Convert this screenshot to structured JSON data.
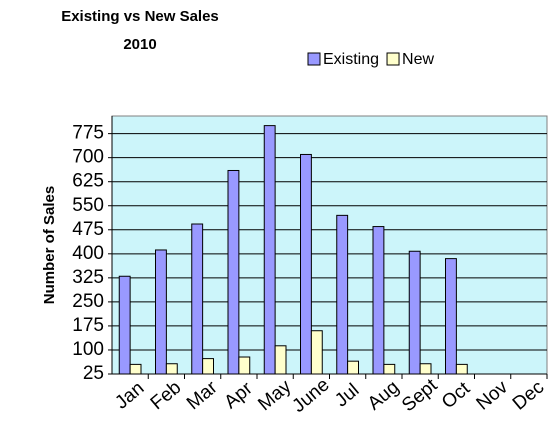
{
  "chart_data": {
    "type": "bar",
    "title": "Existing vs New Sales",
    "subtitle": "2010",
    "y_label": "Number of Sales",
    "categories": [
      "Jan",
      "Feb",
      "Mar",
      "Apr",
      "May",
      "June",
      "Jul",
      "Aug",
      "Sept",
      "Oct",
      "Nov",
      "Dec"
    ],
    "series": [
      {
        "name": "Existing",
        "color": "#9999ff",
        "values": [
          330,
          412,
          493,
          660,
          800,
          710,
          520,
          485,
          408,
          385,
          null,
          null
        ]
      },
      {
        "name": "New",
        "color": "#ffffcc",
        "values": [
          55,
          57,
          73,
          78,
          113,
          160,
          65,
          55,
          57,
          55,
          null,
          null
        ]
      }
    ],
    "ylim": [
      25,
      830
    ],
    "yticks": [
      25,
      100,
      175,
      250,
      325,
      400,
      475,
      550,
      625,
      700,
      775
    ],
    "grid": true,
    "legend": "top-right",
    "plot_background": "#ccf5fa"
  }
}
